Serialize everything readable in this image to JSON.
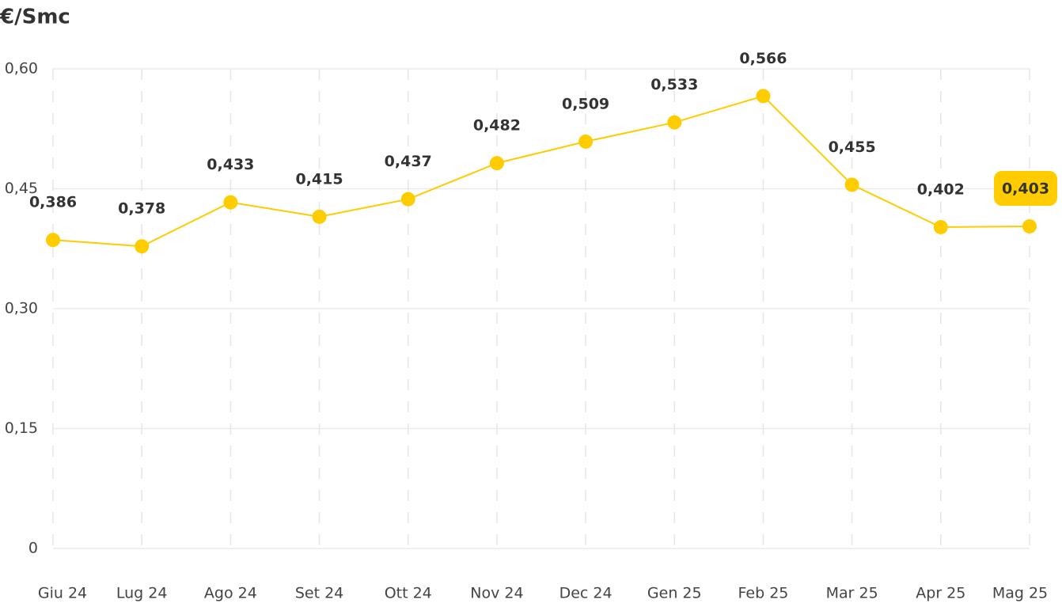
{
  "chart_data": {
    "type": "line",
    "title": "€/Smc",
    "categories": [
      "Giu 24",
      "Lug 24",
      "Ago 24",
      "Set 24",
      "Ott 24",
      "Nov 24",
      "Dec 24",
      "Gen 25",
      "Feb 25",
      "Mar 25",
      "Apr 25",
      "Mag 25"
    ],
    "series": [
      {
        "name": "€/Smc",
        "color": "#ffcc00",
        "values": [
          0.386,
          0.378,
          0.433,
          0.415,
          0.437,
          0.482,
          0.509,
          0.533,
          0.566,
          0.455,
          0.402,
          0.403
        ],
        "value_labels": [
          "0,386",
          "0,378",
          "0,433",
          "0,415",
          "0,437",
          "0,482",
          "0,509",
          "0,533",
          "0,566",
          "0,455",
          "0,402",
          "0,403"
        ]
      }
    ],
    "ylim": [
      0,
      0.6
    ],
    "yticks": [
      0,
      {
        "value": 0.15,
        "label": "0,15"
      },
      {
        "value": 0.3,
        "label": "0,30"
      },
      {
        "value": 0.45,
        "label": "0,45"
      },
      {
        "value": 0.6,
        "label": "0,60"
      }
    ],
    "grid": true
  }
}
